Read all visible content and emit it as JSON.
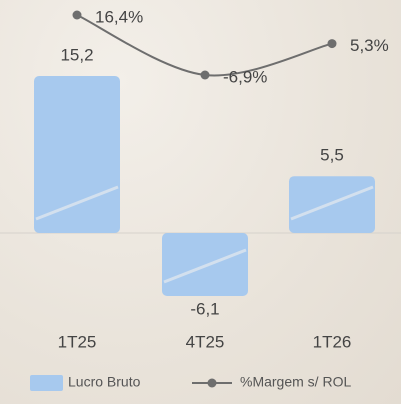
{
  "chart_data": {
    "type": "bar",
    "categories": [
      "1T25",
      "4T25",
      "1T26"
    ],
    "series": [
      {
        "name": "Lucro Bruto",
        "color": "#a7c9ee",
        "values": [
          15.2,
          -6.1,
          5.5
        ],
        "value_labels": [
          "15,2",
          "-6,1",
          "5,5"
        ]
      },
      {
        "name": "%Margem s/ ROL",
        "type": "line",
        "color": "#6e6e6e",
        "values": [
          16.4,
          -6.9,
          5.3
        ],
        "value_labels": [
          "16,4%",
          "-6,9%",
          "5,3%"
        ]
      }
    ]
  }
}
